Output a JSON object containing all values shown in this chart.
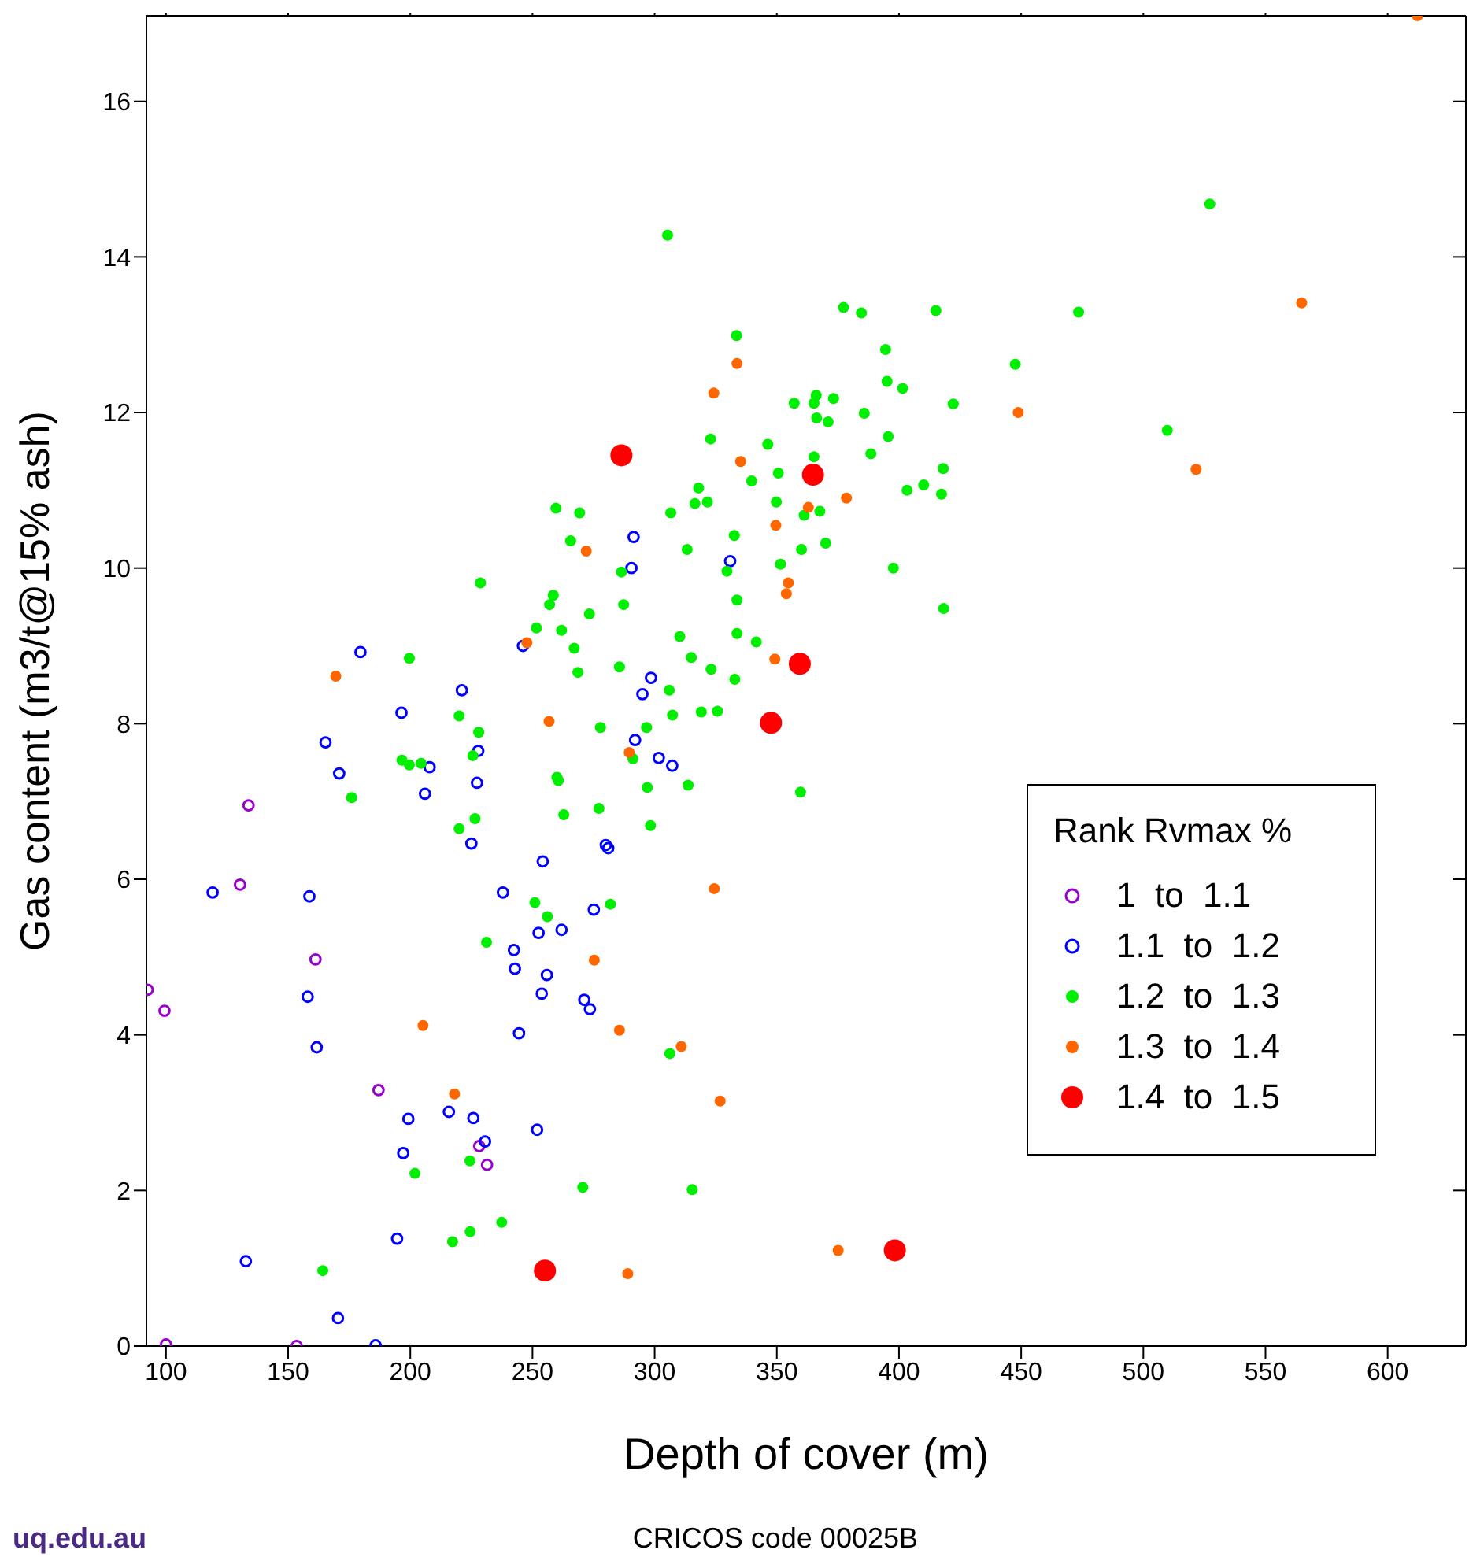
{
  "chart_data": {
    "type": "scatter",
    "xlabel": "Depth of cover (m)",
    "ylabel": "Gas content (m3/t@15% ash)",
    "legend_title": "Rank Rvmax %",
    "legend": "bottom right",
    "marker": "circle",
    "xlim": [
      92,
      632
    ],
    "ylim": [
      0,
      17.1
    ],
    "xticks": [
      100,
      150,
      200,
      250,
      300,
      350,
      400,
      450,
      500,
      550,
      600
    ],
    "yticks": [
      0,
      2,
      4,
      6,
      8,
      10,
      12,
      14,
      16
    ],
    "annotations": [
      "CRICOS code 00025B",
      "uq.edu.au"
    ],
    "series": [
      {
        "name": "1  to  1.1",
        "color": "#9900cc",
        "x": [
          92.5,
          99.4,
          133.8,
          130.3,
          161.2,
          187,
          100,
          153.5,
          228.2,
          231.4
        ],
        "values": [
          4.58,
          4.31,
          6.95,
          5.93,
          4.97,
          3.29,
          0.02,
          0,
          2.57,
          2.33
        ]
      },
      {
        "name": "1.1  to  1.2",
        "color": "#0000ff",
        "x": [
          179.6,
          196.4,
          165.3,
          170.9,
          207.9,
          206,
          119.1,
          158.7,
          158,
          161.7,
          199.2,
          197.1,
          194.6,
          132.7,
          170.4,
          185.8,
          291.4,
          290.5,
          330.9,
          246.1,
          221.1,
          298.5,
          295,
          227.8,
          292,
          301.7,
          307.2,
          227.3,
          225,
          280,
          281,
          254.2,
          237.9,
          275.1,
          252.5,
          261.9,
          242.4,
          242.8,
          255.9,
          253.8,
          271.2,
          273.5,
          244.5,
          215.8,
          225.8,
          251.9,
          230.6
        ],
        "values": [
          8.92,
          8.14,
          7.76,
          7.36,
          7.44,
          7.1,
          5.83,
          5.78,
          4.49,
          3.84,
          2.92,
          2.48,
          1.38,
          1.09,
          0.36,
          0.01,
          10.4,
          10.0,
          10.09,
          9.0,
          8.43,
          8.59,
          8.38,
          7.65,
          7.79,
          7.56,
          7.46,
          7.24,
          6.46,
          6.44,
          6.4,
          6.23,
          5.83,
          5.61,
          5.31,
          5.35,
          5.09,
          4.85,
          4.77,
          4.53,
          4.45,
          4.33,
          4.02,
          3.01,
          2.93,
          2.78,
          2.63
        ]
      },
      {
        "name": "1.2  to  1.3",
        "color": "#00ee00",
        "x": [
          199.6,
          196.6,
          199.6,
          204.4,
          176,
          201.9,
          164.2,
          305.3,
          333.5,
          322.9,
          318,
          316.5,
          321.6,
          259.6,
          269.3,
          306.6,
          332.6,
          265.6,
          313.3,
          228.7,
          286.4,
          329.6,
          258.5,
          257,
          287.3,
          333.7,
          273.3,
          251.6,
          261.9,
          267.1,
          310.3,
          333.7,
          268.6,
          285.6,
          315,
          323.1,
          332.8,
          306,
          220,
          307.3,
          319.1,
          325.7,
          277.8,
          296.7,
          228,
          225.6,
          291.1,
          260,
          260.6,
          297,
          313.7,
          226.5,
          220,
          262.8,
          277.2,
          298.3,
          251,
          256.1,
          281.9,
          231.2,
          306.2,
          224.4,
          270.6,
          315.4,
          237.4,
          224.5,
          217.3,
          377.3,
          384.6,
          415.1,
          394.5,
          447.6,
          395.1,
          401.5,
          366.1,
          365.2,
          373.2,
          357.1,
          422.2,
          366.3,
          371,
          385.8,
          395.6,
          388.5,
          346.3,
          365.2,
          418.1,
          350.6,
          339.7,
          410.1,
          403.3,
          417.4,
          349.8,
          367.6,
          361.2,
          370,
          360.1,
          351.5,
          397.7,
          418.3,
          341.6,
          359.7,
          527.2,
          473.5,
          509.8
        ],
        "values": [
          8.84,
          7.53,
          7.47,
          7.49,
          7.05,
          2.22,
          0.97,
          14.28,
          12.99,
          11.66,
          11.03,
          10.83,
          10.85,
          10.77,
          10.71,
          10.71,
          10.42,
          10.35,
          10.24,
          9.81,
          9.95,
          9.96,
          9.65,
          9.53,
          9.53,
          9.59,
          9.41,
          9.23,
          9.2,
          8.97,
          9.12,
          9.16,
          8.66,
          8.73,
          8.85,
          8.7,
          8.57,
          8.43,
          8.1,
          8.11,
          8.15,
          8.16,
          7.95,
          7.95,
          7.89,
          7.59,
          7.55,
          7.31,
          7.27,
          7.18,
          7.21,
          6.78,
          6.65,
          6.83,
          6.91,
          6.69,
          5.7,
          5.52,
          5.68,
          5.19,
          3.76,
          2.38,
          2.04,
          2.01,
          1.59,
          1.47,
          1.34,
          13.35,
          13.28,
          13.31,
          12.81,
          12.62,
          12.4,
          12.31,
          12.22,
          12.12,
          12.18,
          12.12,
          12.11,
          11.93,
          11.88,
          11.99,
          11.69,
          11.47,
          11.59,
          11.43,
          11.28,
          11.22,
          11.12,
          11.07,
          11.0,
          10.95,
          10.85,
          10.73,
          10.68,
          10.32,
          10.24,
          10.05,
          10.0,
          9.48,
          9.05,
          7.12,
          14.68,
          13.29,
          11.77
        ]
      },
      {
        "name": "1.3  to  1.4",
        "color": "#ff6600",
        "x": [
          169.5,
          205.2,
          333.7,
          324.2,
          335.2,
          272,
          247.7,
          256.8,
          289.6,
          324.4,
          275.3,
          285.6,
          310.9,
          326.8,
          218.1,
          289,
          448.8,
          378.5,
          362.9,
          349.6,
          354.7,
          353.9,
          349.2,
          375.1,
          612.2,
          564.8,
          521.6
        ],
        "values": [
          8.61,
          4.12,
          12.63,
          12.25,
          11.37,
          10.22,
          9.04,
          8.03,
          7.63,
          5.88,
          4.96,
          4.06,
          3.85,
          3.15,
          3.24,
          0.93,
          12.0,
          10.9,
          10.78,
          10.55,
          9.81,
          9.67,
          8.83,
          1.23,
          17.1,
          13.41,
          11.27
        ]
      },
      {
        "name": "1.4  to  1.5",
        "color": "#ff0000",
        "x": [
          286.4,
          364.8,
          359.4,
          347.6,
          255.1,
          398.3
        ],
        "values": [
          11.45,
          11.2,
          8.77,
          8.01,
          0.97,
          1.23
        ]
      }
    ]
  }
}
